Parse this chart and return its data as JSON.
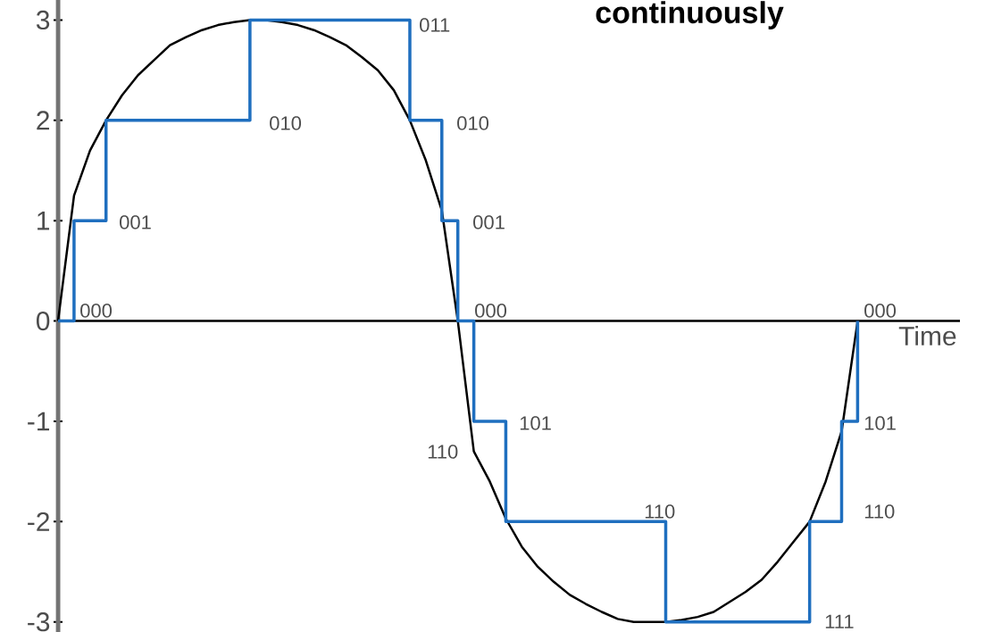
{
  "chart_data": {
    "type": "line",
    "title": "continuously",
    "xlabel": "Time",
    "categories": [
      null,
      null,
      null,
      null,
      null,
      null,
      null,
      null,
      null,
      null,
      null,
      null,
      null,
      null,
      null,
      null,
      null,
      null,
      null,
      null,
      null,
      null,
      null,
      null,
      null,
      null,
      null,
      null,
      null,
      null,
      null,
      null,
      null,
      null,
      null,
      null,
      null,
      null,
      null,
      null,
      null,
      null,
      null,
      null,
      null,
      null,
      null,
      null,
      null,
      null,
      null,
      null,
      null,
      null,
      null,
      null,
      null
    ],
    "ylim": [
      -3.1,
      3.2
    ],
    "yticks": [
      -3,
      -2,
      -1,
      0,
      1,
      2,
      3
    ],
    "tick_labels": "y",
    "series": [
      {
        "color": "#000000",
        "values": [
          0,
          1.25,
          1.7,
          2.0,
          2.25,
          2.45,
          2.6,
          2.75,
          2.83,
          2.9,
          2.95,
          2.98,
          3.0,
          3.0,
          2.98,
          2.95,
          2.9,
          2.83,
          2.75,
          2.63,
          2.5,
          2.3,
          2.0,
          1.6,
          1.1,
          0,
          -1.3,
          -1.6,
          -1.97,
          -2.25,
          -2.45,
          -2.6,
          -2.73,
          -2.82,
          -2.9,
          -2.97,
          -3.0,
          -3.0,
          -3.0,
          -2.98,
          -2.95,
          -2.9,
          -2.8,
          -2.7,
          -2.58,
          -2.4,
          -2.2,
          -2.0,
          -1.6,
          -1.1,
          0,
          null,
          null,
          null,
          null,
          null,
          null
        ]
      },
      {
        "type": "step",
        "color": "#1f6fbf",
        "values": [
          0,
          1,
          1,
          2,
          2,
          2,
          2,
          2,
          2,
          2,
          2,
          2,
          3,
          3,
          3,
          3,
          3,
          3,
          3,
          3,
          3,
          3,
          2,
          2,
          1,
          0,
          -1,
          -1,
          -2,
          -2,
          -2,
          -2,
          -2,
          -2,
          -2,
          -2,
          -2,
          -2,
          -3,
          -3,
          -3,
          -3,
          -3,
          -3,
          -3,
          -3,
          -3,
          -2,
          -2,
          -1,
          0,
          null,
          null,
          null,
          null,
          null,
          null
        ]
      }
    ],
    "annotations": [
      "000",
      "001",
      "010",
      "011",
      "010",
      "001",
      "000",
      "110",
      "101",
      "110",
      "111",
      "110",
      "101",
      "000"
    ]
  }
}
